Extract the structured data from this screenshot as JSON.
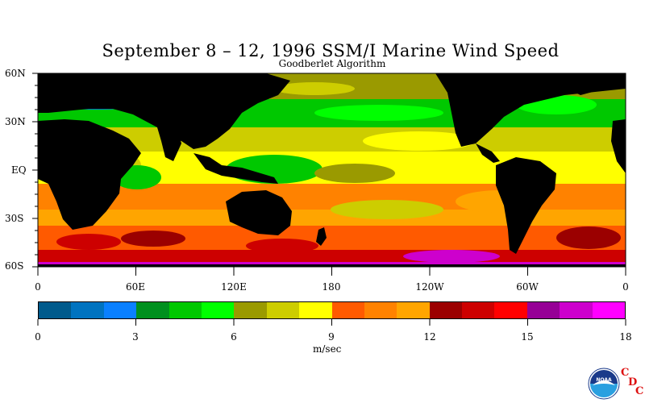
{
  "title": "September 8 – 12, 1996 SSM/I Marine Wind Speed",
  "subtitle": "Goodberlet Algorithm",
  "map": {
    "lat_labels": [
      "60N",
      "30N",
      "EQ",
      "30S",
      "60S"
    ],
    "lon_labels": [
      "0",
      "60E",
      "120E",
      "180",
      "120W",
      "60W",
      "0"
    ],
    "land_color": "#000000"
  },
  "colorbar": {
    "colors": [
      "#005a8c",
      "#0073c0",
      "#0a80ff",
      "#00901e",
      "#00c800",
      "#00ff00",
      "#9a9a00",
      "#cdcd00",
      "#ffff00",
      "#ff5a00",
      "#ff8200",
      "#ffa500",
      "#9b0000",
      "#cd0000",
      "#ff0000",
      "#960096",
      "#cd00cd",
      "#ff00ff"
    ],
    "tick_labels": [
      "0",
      "3",
      "6",
      "9",
      "12",
      "15",
      "18"
    ],
    "units": "m/sec",
    "range": [
      0,
      18
    ]
  },
  "logo": {
    "text": "NOAA",
    "letters": [
      "C",
      "D",
      "C"
    ]
  }
}
